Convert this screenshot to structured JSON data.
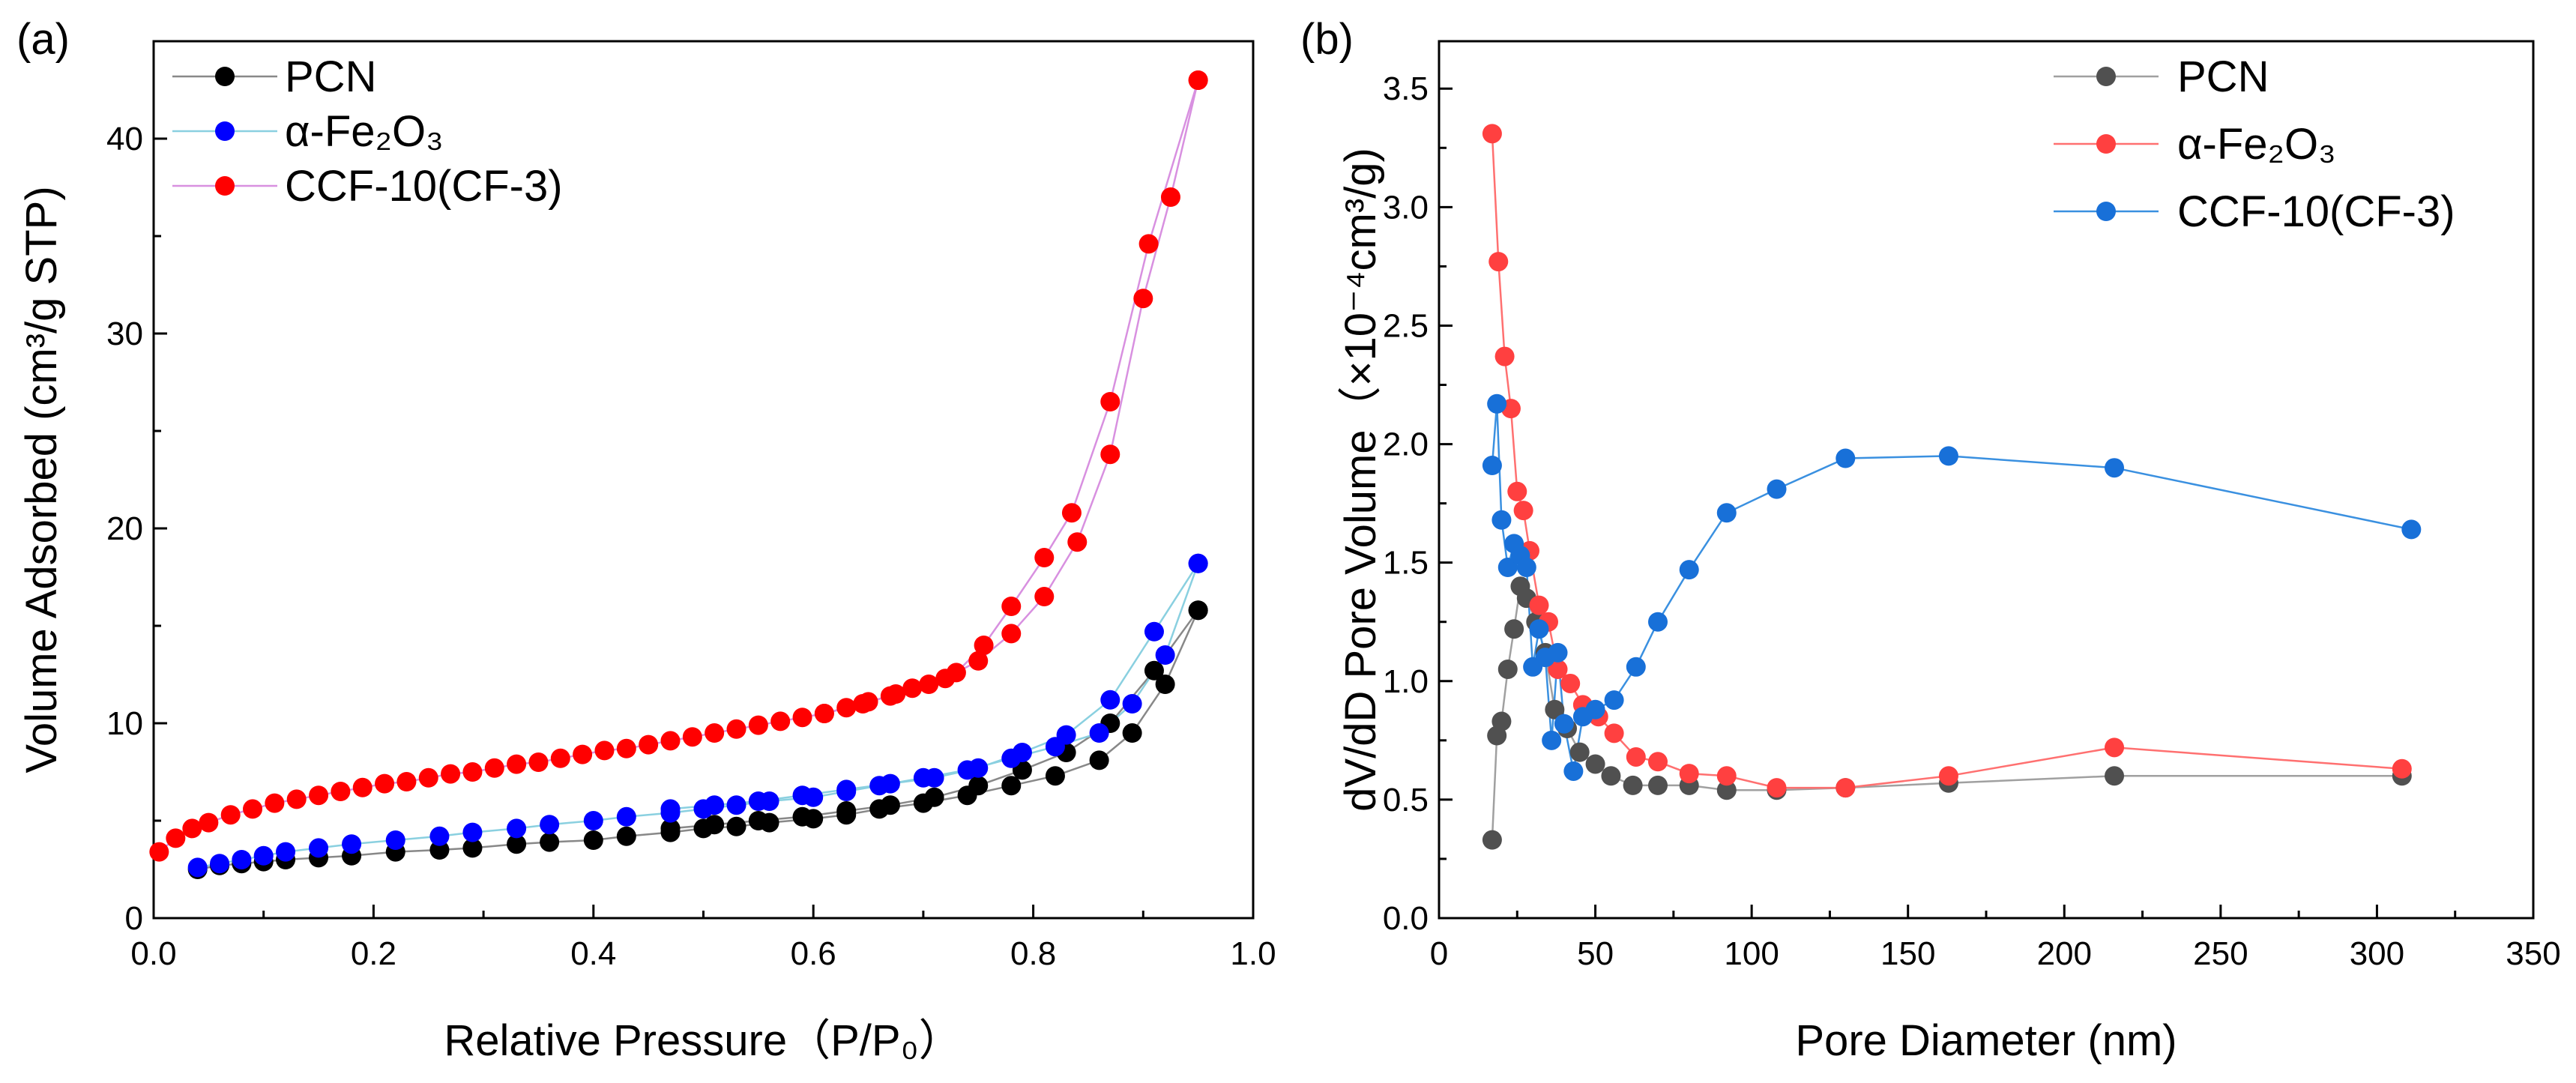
{
  "chart_data": [
    {
      "panel_label": "(a)",
      "type": "line",
      "xlabel": "Relative Pressure（P/P₀）",
      "ylabel": "Volume Adsorbed (cm³/g STP)",
      "xlim": [
        0.0,
        1.0
      ],
      "ylim": [
        0,
        45
      ],
      "xticks": [
        0.0,
        0.2,
        0.4,
        0.6,
        0.8,
        1.0
      ],
      "xtick_labels": [
        "0.0",
        "0.2",
        "0.4",
        "0.6",
        "0.8",
        "1.0"
      ],
      "yticks": [
        0,
        10,
        20,
        30,
        40
      ],
      "ytick_labels": [
        "0",
        "10",
        "20",
        "30",
        "40"
      ],
      "grid": false,
      "legend_position": "top-left",
      "series": [
        {
          "name": "PCN",
          "marker_color": "#000000",
          "line_color": "#888888",
          "adsorption": {
            "x": [
              0.04,
              0.06,
              0.08,
              0.1,
              0.12,
              0.15,
              0.18,
              0.22,
              0.26,
              0.29,
              0.33,
              0.36,
              0.4,
              0.43,
              0.47,
              0.5,
              0.53,
              0.56,
              0.6,
              0.63,
              0.66,
              0.7,
              0.74,
              0.78,
              0.82,
              0.86,
              0.89,
              0.92,
              0.95
            ],
            "y": [
              2.5,
              2.7,
              2.8,
              2.9,
              3.0,
              3.1,
              3.2,
              3.4,
              3.5,
              3.6,
              3.8,
              3.9,
              4.0,
              4.2,
              4.4,
              4.6,
              4.7,
              4.9,
              5.1,
              5.3,
              5.6,
              5.9,
              6.3,
              6.8,
              7.3,
              8.1,
              9.5,
              12.0,
              15.8
            ]
          },
          "desorption": {
            "x": [
              0.95,
              0.91,
              0.87,
              0.83,
              0.79,
              0.75,
              0.71,
              0.67,
              0.63,
              0.59,
              0.55,
              0.51,
              0.47
            ],
            "y": [
              15.8,
              12.7,
              10.0,
              8.5,
              7.6,
              6.8,
              6.2,
              5.8,
              5.5,
              5.2,
              5.0,
              4.8,
              4.6
            ]
          }
        },
        {
          "name": "α-Fe₂O₃",
          "marker_color": "#0000ff",
          "line_color": "#8ad0e0",
          "adsorption": {
            "x": [
              0.04,
              0.06,
              0.08,
              0.1,
              0.12,
              0.15,
              0.18,
              0.22,
              0.26,
              0.29,
              0.33,
              0.36,
              0.4,
              0.43,
              0.47,
              0.5,
              0.53,
              0.56,
              0.6,
              0.63,
              0.66,
              0.7,
              0.74,
              0.78,
              0.82,
              0.86,
              0.89,
              0.92,
              0.95
            ],
            "y": [
              2.6,
              2.8,
              3.0,
              3.2,
              3.4,
              3.6,
              3.8,
              4.0,
              4.2,
              4.4,
              4.6,
              4.8,
              5.0,
              5.2,
              5.4,
              5.6,
              5.8,
              6.0,
              6.2,
              6.5,
              6.8,
              7.2,
              7.6,
              8.2,
              8.8,
              9.5,
              11.0,
              13.5,
              18.2
            ]
          },
          "desorption": {
            "x": [
              0.95,
              0.91,
              0.87,
              0.83,
              0.79,
              0.75,
              0.71,
              0.67,
              0.63,
              0.59,
              0.55,
              0.51,
              0.47
            ],
            "y": [
              18.2,
              14.7,
              11.2,
              9.4,
              8.5,
              7.7,
              7.2,
              6.9,
              6.6,
              6.3,
              6.0,
              5.8,
              5.6
            ]
          }
        },
        {
          "name": "CCF-10(CF-3)",
          "marker_color": "#ff0000",
          "line_color": "#d890e0",
          "adsorption": {
            "x": [
              0.005,
              0.02,
              0.035,
              0.05,
              0.07,
              0.09,
              0.11,
              0.13,
              0.15,
              0.17,
              0.19,
              0.21,
              0.23,
              0.25,
              0.27,
              0.29,
              0.31,
              0.33,
              0.35,
              0.37,
              0.39,
              0.41,
              0.43,
              0.45,
              0.47,
              0.49,
              0.51,
              0.53,
              0.55,
              0.57,
              0.59,
              0.61,
              0.63,
              0.65,
              0.67,
              0.69,
              0.72,
              0.75,
              0.78,
              0.81,
              0.84,
              0.87,
              0.9,
              0.925,
              0.95
            ],
            "y": [
              3.4,
              4.1,
              4.6,
              4.9,
              5.3,
              5.6,
              5.9,
              6.1,
              6.3,
              6.5,
              6.7,
              6.9,
              7.0,
              7.2,
              7.4,
              7.5,
              7.7,
              7.9,
              8.0,
              8.2,
              8.4,
              8.6,
              8.7,
              8.9,
              9.1,
              9.3,
              9.5,
              9.7,
              9.9,
              10.1,
              10.3,
              10.5,
              10.8,
              11.1,
              11.4,
              11.8,
              12.3,
              13.2,
              14.6,
              16.5,
              19.3,
              23.8,
              31.8,
              37.0,
              43.0
            ]
          },
          "desorption": {
            "x": [
              0.95,
              0.905,
              0.87,
              0.835,
              0.81,
              0.78,
              0.755,
              0.73,
              0.705,
              0.675,
              0.645,
              0.61
            ],
            "y": [
              43.0,
              34.6,
              26.5,
              20.8,
              18.5,
              16.0,
              14.0,
              12.6,
              12.0,
              11.5,
              11.0,
              10.5
            ]
          }
        }
      ]
    },
    {
      "panel_label": "(b)",
      "type": "line",
      "xlabel": "Pore Diameter (nm)",
      "ylabel": "dV/dD Pore Volume（×10⁻⁴cm³/g)",
      "xlim": [
        0,
        350
      ],
      "ylim": [
        0.0,
        3.7
      ],
      "xticks": [
        0,
        50,
        100,
        150,
        200,
        250,
        300,
        350
      ],
      "xtick_labels": [
        "0",
        "50",
        "100",
        "150",
        "200",
        "250",
        "300",
        "350"
      ],
      "yticks": [
        0.0,
        0.5,
        1.0,
        1.5,
        2.0,
        2.5,
        3.0,
        3.5
      ],
      "ytick_labels": [
        "0.0",
        "0.5",
        "1.0",
        "1.5",
        "2.0",
        "2.5",
        "3.0",
        "3.5"
      ],
      "grid": false,
      "legend_position": "top-right",
      "series": [
        {
          "name": "PCN",
          "marker_color": "#505050",
          "line_color": "#a0a0a0",
          "x": [
            17,
            18.5,
            20,
            22,
            24,
            26,
            28,
            31,
            34,
            37,
            41,
            45,
            50,
            55,
            62,
            70,
            80,
            92,
            108,
            130,
            163,
            216,
            308
          ],
          "y": [
            0.33,
            0.77,
            0.83,
            1.05,
            1.22,
            1.4,
            1.35,
            1.25,
            1.12,
            0.88,
            0.8,
            0.7,
            0.65,
            0.6,
            0.56,
            0.56,
            0.56,
            0.54,
            0.54,
            0.55,
            0.57,
            0.6,
            0.6
          ]
        },
        {
          "name": "α-Fe₂O₃",
          "marker_color": "#ff4040",
          "line_color": "#ff7070",
          "x": [
            17,
            19,
            21,
            23,
            25,
            27,
            29,
            32,
            35,
            38,
            42,
            46,
            51,
            56,
            63,
            70,
            80,
            92,
            108,
            130,
            163,
            216,
            308
          ],
          "y": [
            3.31,
            2.77,
            2.37,
            2.15,
            1.8,
            1.72,
            1.55,
            1.32,
            1.25,
            1.05,
            0.99,
            0.9,
            0.85,
            0.78,
            0.68,
            0.66,
            0.61,
            0.6,
            0.55,
            0.55,
            0.6,
            0.72,
            0.63
          ]
        },
        {
          "name": "CCF-10(CF-3)",
          "marker_color": "#1870d8",
          "line_color": "#3a90e0",
          "x": [
            17,
            18.5,
            20,
            22,
            24,
            26,
            28,
            30,
            32,
            34,
            36,
            38,
            40,
            43,
            46,
            50,
            56,
            63,
            70,
            80,
            92,
            108,
            130,
            163,
            216,
            311
          ],
          "y": [
            1.91,
            2.17,
            1.68,
            1.48,
            1.58,
            1.53,
            1.48,
            1.06,
            1.22,
            1.1,
            0.75,
            1.12,
            0.82,
            0.62,
            0.85,
            0.88,
            0.92,
            1.06,
            1.25,
            1.47,
            1.71,
            1.81,
            1.94,
            1.95,
            1.9,
            1.64
          ]
        }
      ]
    }
  ]
}
